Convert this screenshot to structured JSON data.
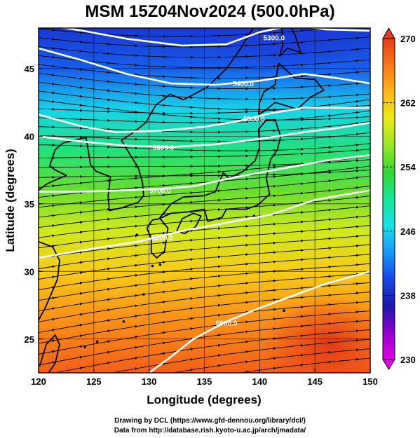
{
  "title": "MSM 15Z04Nov2024 (500.0hPa)",
  "credits": {
    "line1": "Drawing by DCL (https://www.gfd-dennou.org/library/dcl/)",
    "line2": "Data from http://database.rish.kyoto-u.ac.jp/arch/jmadata/"
  },
  "colors": {
    "coast": "#000000",
    "contour": "#ffffff",
    "streamline": "#000000",
    "grid": "#000000"
  },
  "chart_data": {
    "type": "heatmap",
    "xlabel": "Longitude (degrees)",
    "ylabel": "Latitude  (degrees)",
    "xlim": [
      120,
      150
    ],
    "ylim": [
      22.5,
      48
    ],
    "x_ticks": [
      120,
      125,
      130,
      135,
      140,
      145,
      150
    ],
    "y_ticks": [
      25,
      30,
      35,
      40,
      45
    ],
    "colorbar": {
      "range": [
        230,
        270
      ],
      "tick_values": [
        270,
        262,
        254,
        246,
        238,
        230
      ],
      "colors_low_to_high": [
        "#e400e8",
        "#9300d0",
        "#1c18a8",
        "#1846e8",
        "#1898f4",
        "#18e2e8",
        "#18e69a",
        "#33d633",
        "#9ae628",
        "#e8ea18",
        "#fdb818",
        "#f87818",
        "#e83a18"
      ]
    },
    "temperature_gradient": [
      {
        "lat": 48,
        "value": 239
      },
      {
        "lat": 45,
        "value": 241
      },
      {
        "lat": 42,
        "value": 246
      },
      {
        "lat": 39,
        "value": 251
      },
      {
        "lat": 36,
        "value": 255
      },
      {
        "lat": 33,
        "value": 259
      },
      {
        "lat": 30,
        "value": 262
      },
      {
        "lat": 27,
        "value": 265
      },
      {
        "lat": 24,
        "value": 267
      },
      {
        "lat": 22.5,
        "value": 268
      }
    ],
    "contours": [
      {
        "label": "5300.0",
        "points": [
          [
            120,
            48.3
          ],
          [
            124,
            47.8
          ],
          [
            128,
            47.2
          ],
          [
            133,
            46.7
          ],
          [
            137,
            46.8
          ],
          [
            140,
            47.7
          ],
          [
            143,
            48.2
          ],
          [
            146,
            47.9
          ],
          [
            150,
            47.8
          ]
        ],
        "label_at": [
          141.3,
          47.3
        ]
      },
      {
        "label": "5400.0",
        "points": [
          [
            120,
            46.5
          ],
          [
            124,
            45.6
          ],
          [
            128,
            44.6
          ],
          [
            132,
            43.9
          ],
          [
            136,
            43.8
          ],
          [
            140,
            44.1
          ],
          [
            144,
            44.6
          ],
          [
            147,
            44.3
          ],
          [
            150,
            43.9
          ]
        ],
        "label_at": [
          138.5,
          43.9
        ]
      },
      {
        "label": "5500.0",
        "points": [
          [
            120,
            41.6
          ],
          [
            124,
            40.7
          ],
          [
            127,
            40.3
          ],
          [
            131,
            40.4
          ],
          [
            135,
            40.7
          ],
          [
            138,
            41.1
          ],
          [
            141,
            41.7
          ],
          [
            144,
            42.1
          ],
          [
            147,
            42.1
          ],
          [
            150,
            42.1
          ]
        ],
        "label_at": [
          139.5,
          41.3
        ]
      },
      {
        "label": "5600.0",
        "points": [
          [
            120,
            40.0
          ],
          [
            124,
            39.6
          ],
          [
            128,
            39.3
          ],
          [
            132,
            39.2
          ],
          [
            136,
            39.4
          ],
          [
            140,
            39.8
          ],
          [
            144,
            40.3
          ],
          [
            147,
            40.6
          ],
          [
            150,
            41.0
          ]
        ],
        "label_at": [
          131.3,
          39.2
        ]
      },
      {
        "label": "5700.0",
        "points": [
          [
            120,
            35.9
          ],
          [
            124,
            35.9
          ],
          [
            128,
            36.0
          ],
          [
            131,
            36.1
          ],
          [
            134,
            36.3
          ],
          [
            138,
            37.0
          ],
          [
            142,
            37.6
          ],
          [
            146,
            38.2
          ],
          [
            150,
            38.6
          ]
        ],
        "label_at": [
          131.0,
          36.0
        ]
      },
      {
        "label": "5800.0",
        "points": [
          [
            120,
            31.0
          ],
          [
            125,
            31.7
          ],
          [
            129,
            32.2
          ],
          [
            133,
            33.0
          ],
          [
            137,
            33.6
          ],
          [
            141,
            34.2
          ],
          [
            145,
            35.3
          ],
          [
            150,
            36.0
          ]
        ],
        "label_at": [
          131.2,
          32.5
        ]
      },
      {
        "label": "5900.0",
        "points": [
          [
            130,
            22.5
          ],
          [
            132,
            23.7
          ],
          [
            134,
            25.0
          ],
          [
            137,
            26.3
          ],
          [
            140,
            27.3
          ],
          [
            143,
            28.2
          ],
          [
            146,
            29.1
          ],
          [
            150,
            30.0
          ]
        ],
        "label_at": [
          137.0,
          26.2
        ]
      }
    ]
  }
}
